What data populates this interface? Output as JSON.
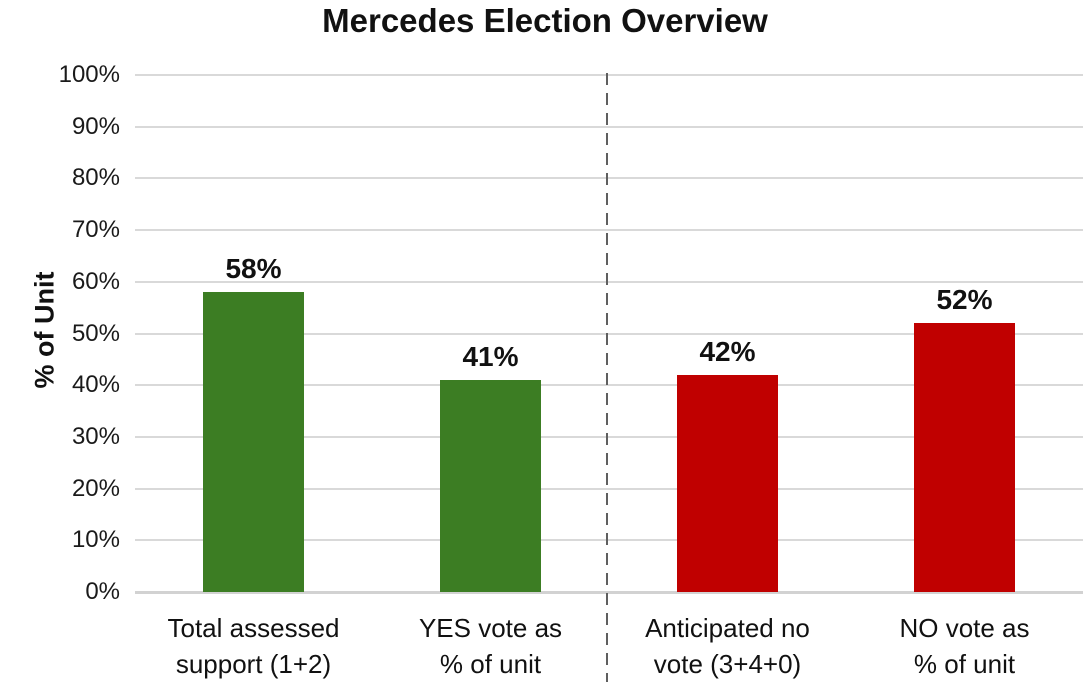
{
  "chart_data": {
    "type": "bar",
    "title": "Mercedes Election Overview",
    "ylabel": "% of Unit",
    "xlabel": "",
    "ylim": [
      0,
      100
    ],
    "ytick_step": 10,
    "ytick_labels": [
      "0%",
      "10%",
      "20%",
      "30%",
      "40%",
      "50%",
      "60%",
      "70%",
      "80%",
      "90%",
      "100%"
    ],
    "grid": true,
    "legend": false,
    "categories": [
      "Total assessed\nsupport (1+2)",
      "YES vote as\n% of unit",
      "Anticipated no\nvote (3+4+0)",
      "NO vote as\n% of unit"
    ],
    "values": [
      58,
      41,
      42,
      52
    ],
    "value_labels": [
      "58%",
      "41%",
      "42%",
      "52%"
    ],
    "bar_colors": [
      "#3c7d23",
      "#3c7d23",
      "#c00000",
      "#c00000"
    ],
    "divider_after_category_index": 1
  },
  "colors": {
    "green_bar": "#3c7d23",
    "red_bar": "#c00000",
    "gridline": "#d9d9d9",
    "axis_line": "#d2d2d2",
    "divider": "#5f5f5f",
    "text": "#111111",
    "background": "#ffffff"
  }
}
